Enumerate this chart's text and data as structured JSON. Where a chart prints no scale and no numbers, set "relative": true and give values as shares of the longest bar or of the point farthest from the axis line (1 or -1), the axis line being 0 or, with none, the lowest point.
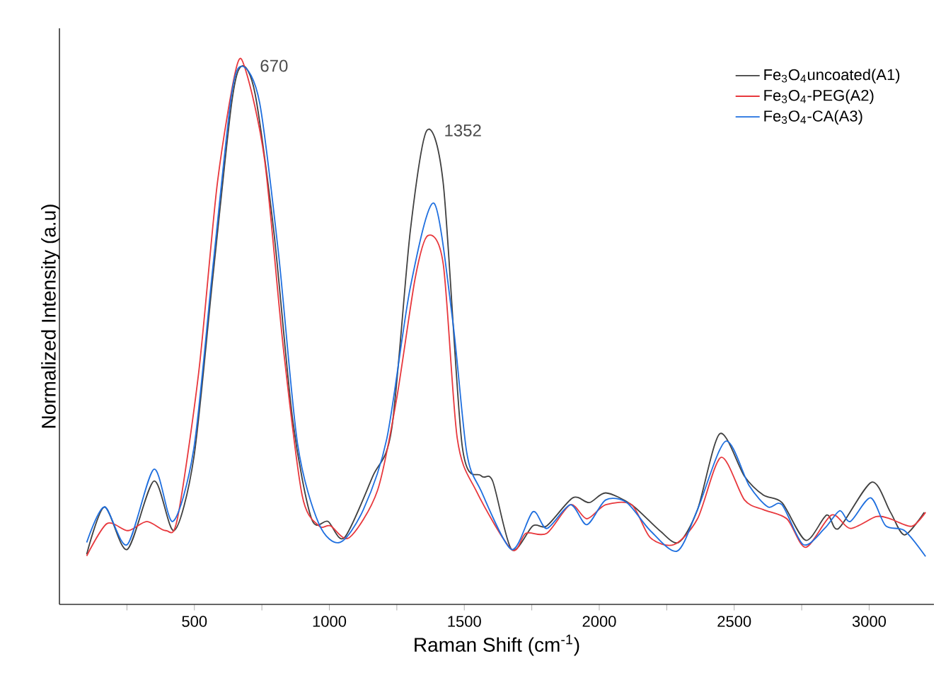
{
  "chart_data": {
    "type": "line",
    "relative": true,
    "xlabel": "Raman Shift (cm$^{-1}$)",
    "ylabel": "Normalized Intensity (a.u)",
    "xlim": [
      0,
      3240
    ],
    "xticks": [
      {
        "value": 250,
        "label": null
      },
      500,
      {
        "value": 750,
        "label": null
      },
      1000,
      {
        "value": 1250,
        "label": null
      },
      1500,
      {
        "value": 1750,
        "label": null
      },
      2000,
      {
        "value": 2250,
        "label": null
      },
      2500,
      {
        "value": 2750,
        "label": null
      },
      3000
    ],
    "legend": "top right",
    "grid": false,
    "marker": "none",
    "line_style": "solid",
    "annotations": [
      {
        "text": "670",
        "x": 670,
        "y": 1.0
      },
      {
        "text": "1352",
        "x": 1352,
        "y": 0.88
      }
    ],
    "series": [
      {
        "name": "Fe$_{3}$O$_{4}$uncoated(A1)",
        "color": "#404040",
        "x": [
          101,
          167,
          251,
          350,
          425,
          498,
          568,
          638,
          676,
          725,
          794,
          864,
          934,
          995,
          1056,
          1161,
          1231,
          1300,
          1361,
          1422,
          1492,
          1562,
          1605,
          1675,
          1754,
          1806,
          1902,
          1963,
          2024,
          2120,
          2224,
          2294,
          2364,
          2447,
          2538,
          2608,
          2677,
          2765,
          2843,
          2887,
          3009,
          3078,
          3131,
          3204
        ],
        "values": [
          0.093,
          0.181,
          0.102,
          0.229,
          0.137,
          0.273,
          0.606,
          0.931,
          1.0,
          0.948,
          0.694,
          0.343,
          0.159,
          0.154,
          0.124,
          0.238,
          0.326,
          0.694,
          0.88,
          0.782,
          0.295,
          0.239,
          0.229,
          0.102,
          0.146,
          0.146,
          0.198,
          0.189,
          0.207,
          0.185,
          0.137,
          0.115,
          0.176,
          0.317,
          0.238,
          0.203,
          0.189,
          0.119,
          0.166,
          0.141,
          0.227,
          0.172,
          0.129,
          0.171
        ]
      },
      {
        "name": "Fe$_{3}$O$_{4}$-PEG(A2)",
        "color": "#e8383d",
        "x": [
          101,
          176,
          254,
          324,
          394,
          437,
          516,
          585,
          655,
          690,
          760,
          830,
          899,
          961,
          1004,
          1074,
          1178,
          1248,
          1318,
          1365,
          1422,
          1474,
          1544,
          1675,
          1728,
          1806,
          1893,
          1954,
          2024,
          2120,
          2189,
          2277,
          2364,
          2451,
          2538,
          2608,
          2695,
          2765,
          2861,
          2930,
          3026,
          3078,
          3157,
          3209
        ],
        "values": [
          0.09,
          0.15,
          0.137,
          0.154,
          0.137,
          0.159,
          0.431,
          0.782,
          0.996,
          0.992,
          0.826,
          0.474,
          0.203,
          0.146,
          0.146,
          0.124,
          0.211,
          0.378,
          0.606,
          0.685,
          0.632,
          0.308,
          0.211,
          0.102,
          0.132,
          0.132,
          0.185,
          0.159,
          0.185,
          0.185,
          0.124,
          0.111,
          0.159,
          0.273,
          0.194,
          0.176,
          0.159,
          0.106,
          0.166,
          0.141,
          0.163,
          0.159,
          0.145,
          0.171
        ]
      },
      {
        "name": "Fe$_{3}$O$_{4}$-CA(A3)",
        "color": "#1f6fdf",
        "x": [
          101,
          167,
          251,
          350,
          420,
          498,
          568,
          638,
          681,
          742,
          812,
          882,
          961,
          1039,
          1126,
          1213,
          1300,
          1388,
          1457,
          1509,
          1562,
          1675,
          1754,
          1806,
          1893,
          1954,
          2024,
          2102,
          2189,
          2289,
          2364,
          2468,
          2556,
          2625,
          2677,
          2756,
          2835,
          2891,
          2930,
          3005,
          3061,
          3131,
          3209
        ],
        "values": [
          0.115,
          0.181,
          0.111,
          0.251,
          0.154,
          0.29,
          0.624,
          0.948,
          0.999,
          0.931,
          0.65,
          0.299,
          0.15,
          0.115,
          0.176,
          0.308,
          0.589,
          0.745,
          0.527,
          0.282,
          0.211,
          0.102,
          0.172,
          0.141,
          0.185,
          0.148,
          0.194,
          0.189,
          0.137,
          0.099,
          0.176,
          0.303,
          0.22,
          0.181,
          0.185,
          0.111,
          0.141,
          0.174,
          0.154,
          0.198,
          0.146,
          0.137,
          0.089
        ]
      }
    ]
  }
}
